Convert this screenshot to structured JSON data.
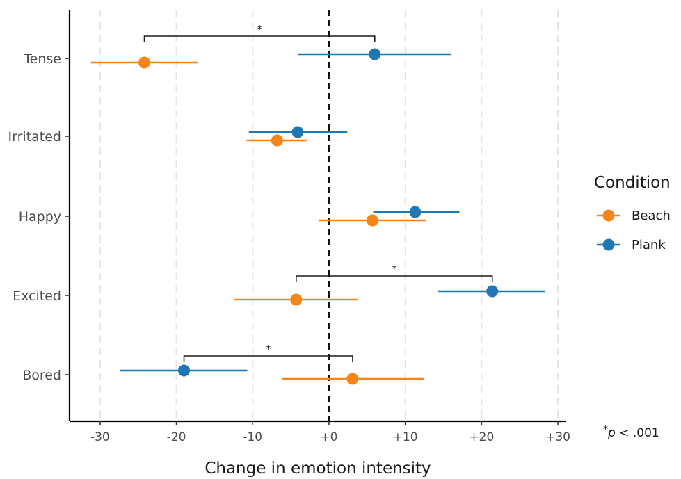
{
  "chart_data": {
    "type": "scatter",
    "subtype": "dot-and-interval",
    "orientation": "horizontal",
    "categories": [
      "Tense",
      "Irritated",
      "Happy",
      "Excited",
      "Bored"
    ],
    "xlabel": "Change in emotion intensity",
    "xlim": [
      -34,
      31
    ],
    "xticks": [
      -30,
      -20,
      -10,
      0,
      10,
      20,
      30
    ],
    "xtick_labels": [
      "-30",
      "-20",
      "-10",
      "+0",
      "+10",
      "+20",
      "+30"
    ],
    "vertical_grid": true,
    "reference_line": 0,
    "legend": {
      "title": "Condition",
      "position": "right"
    },
    "series": [
      {
        "name": "Beach",
        "color": "#f58518",
        "points": [
          {
            "category": "Tense",
            "estimate": -24.2,
            "low": -31.2,
            "high": -17.2
          },
          {
            "category": "Irritated",
            "estimate": -6.8,
            "low": -10.8,
            "high": -2.9
          },
          {
            "category": "Happy",
            "estimate": 5.7,
            "low": -1.3,
            "high": 12.7
          },
          {
            "category": "Excited",
            "estimate": -4.3,
            "low": -12.4,
            "high": 3.8
          },
          {
            "category": "Bored",
            "estimate": 3.1,
            "low": -6.1,
            "high": 12.4
          }
        ]
      },
      {
        "name": "Plank",
        "color": "#1f77b4",
        "points": [
          {
            "category": "Tense",
            "estimate": 6.0,
            "low": -4.1,
            "high": 16.0
          },
          {
            "category": "Irritated",
            "estimate": -4.1,
            "low": -10.5,
            "high": 2.4
          },
          {
            "category": "Happy",
            "estimate": 11.3,
            "low": 5.8,
            "high": 17.1
          },
          {
            "category": "Excited",
            "estimate": 21.4,
            "low": 14.3,
            "high": 28.3
          },
          {
            "category": "Bored",
            "estimate": -19.0,
            "low": -27.4,
            "high": -10.7
          }
        ]
      }
    ],
    "significance_brackets": [
      {
        "category": "Tense",
        "from": -24.2,
        "to": 6.0,
        "label": "*"
      },
      {
        "category": "Excited",
        "from": -4.3,
        "to": 21.4,
        "label": "*"
      },
      {
        "category": "Bored",
        "from": -19.0,
        "to": 3.1,
        "label": "*"
      }
    ],
    "note": {
      "star": "*",
      "p": "p",
      "rest": " < .001"
    }
  }
}
